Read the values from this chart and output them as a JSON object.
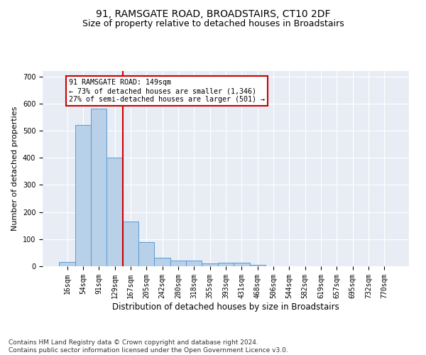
{
  "title1": "91, RAMSGATE ROAD, BROADSTAIRS, CT10 2DF",
  "title2": "Size of property relative to detached houses in Broadstairs",
  "xlabel": "Distribution of detached houses by size in Broadstairs",
  "ylabel": "Number of detached properties",
  "categories": [
    "16sqm",
    "54sqm",
    "91sqm",
    "129sqm",
    "167sqm",
    "205sqm",
    "242sqm",
    "280sqm",
    "318sqm",
    "355sqm",
    "393sqm",
    "431sqm",
    "468sqm",
    "506sqm",
    "544sqm",
    "582sqm",
    "619sqm",
    "657sqm",
    "695sqm",
    "732sqm",
    "770sqm"
  ],
  "values": [
    16,
    520,
    580,
    400,
    165,
    88,
    32,
    20,
    22,
    10,
    12,
    12,
    5,
    0,
    0,
    0,
    0,
    0,
    0,
    0,
    0
  ],
  "bar_color": "#b8d0e8",
  "bar_edge_color": "#5b9bd5",
  "vline_index": 3.5,
  "vline_color": "#cc0000",
  "annotation_line1": "91 RAMSGATE ROAD: 149sqm",
  "annotation_line2": "← 73% of detached houses are smaller (1,346)",
  "annotation_line3": "27% of semi-detached houses are larger (501) →",
  "ylim": [
    0,
    720
  ],
  "yticks": [
    0,
    100,
    200,
    300,
    400,
    500,
    600,
    700
  ],
  "footnote": "Contains HM Land Registry data © Crown copyright and database right 2024.\nContains public sector information licensed under the Open Government Licence v3.0.",
  "plot_bg_color": "#e8edf5",
  "grid_color": "#ffffff",
  "title1_fontsize": 10,
  "title2_fontsize": 9,
  "xlabel_fontsize": 8.5,
  "ylabel_fontsize": 8,
  "tick_fontsize": 7,
  "footnote_fontsize": 6.5
}
